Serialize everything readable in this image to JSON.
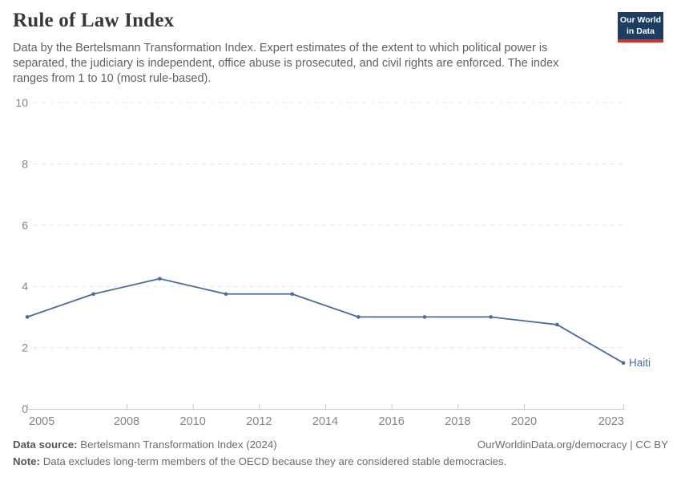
{
  "header": {
    "title": "Rule of Law Index",
    "subtitle": "Data by the Bertelsmann Transformation Index. Expert estimates of the extent to which political power is separated, the judiciary is independent, office abuse is prosecuted, and civil rights are enforced. The index ranges from 1 to 10 (most rule-based).",
    "logo": {
      "line1": "Our World",
      "line2": "in Data"
    }
  },
  "chart_data": {
    "type": "line",
    "title": "Rule of Law Index",
    "x": [
      2005,
      2007,
      2009,
      2011,
      2013,
      2015,
      2017,
      2019,
      2021,
      2023
    ],
    "series": [
      {
        "name": "Haiti",
        "color": "#4C6A9C",
        "values": [
          3,
          3.75,
          4.25,
          3.75,
          3.75,
          3,
          3,
          3,
          2.75,
          1.5
        ]
      }
    ],
    "xticks": [
      2005,
      2008,
      2010,
      2012,
      2014,
      2016,
      2018,
      2020,
      2023
    ],
    "yticks": [
      0,
      2,
      4,
      6,
      8,
      10
    ],
    "xlim": [
      2005,
      2023
    ],
    "ylim": [
      0,
      10
    ],
    "xlabel": "",
    "ylabel": "",
    "grid": "horizontal-dashed",
    "legend": "end-of-line-label"
  },
  "footer": {
    "source_label": "Data source:",
    "source_text": "Bertelsmann Transformation Index (2024)",
    "note_label": "Note:",
    "note_text": "Data excludes long-term members of the OECD because they are considered stable democracies.",
    "link": "OurWorldinData.org/democracy | CC BY"
  },
  "colors": {
    "line": "#4C6A9C",
    "grid": "#e3e3e3",
    "axis": "#c8c8c8",
    "tick_label": "#858585",
    "logo_bg": "#1d3d63",
    "logo_accent": "#dc2c23"
  }
}
